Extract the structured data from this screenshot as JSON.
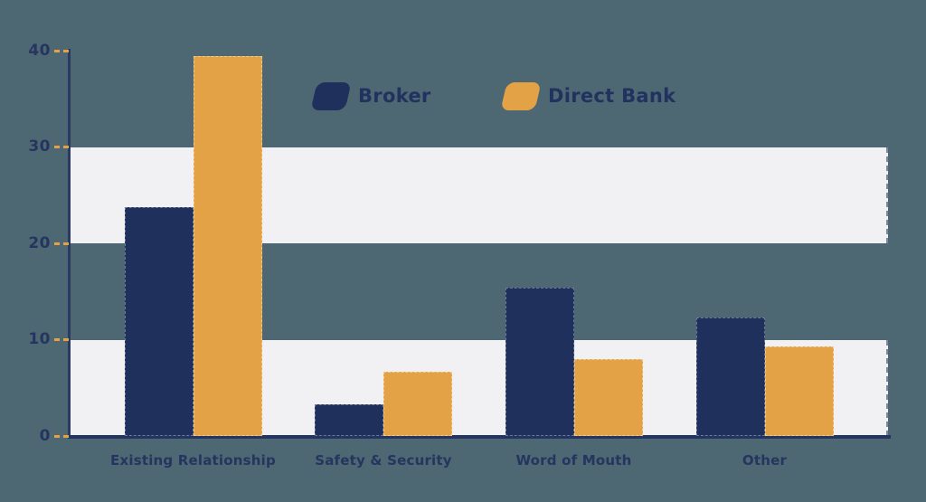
{
  "chart_data": {
    "type": "bar",
    "title": "",
    "categories": [
      "Existing Relationship",
      "Safety & Security",
      "Word of Mouth",
      "Other"
    ],
    "series": [
      {
        "name": "Broker",
        "color": "#20305c",
        "values": [
          23.8,
          3.3,
          15.4,
          12.3
        ]
      },
      {
        "name": "Direct Bank",
        "color": "#e2a245",
        "values": [
          39.4,
          6.7,
          8.0,
          9.3
        ]
      }
    ],
    "ylim": [
      0,
      40
    ],
    "yticks": [
      0,
      10,
      20,
      30,
      40
    ],
    "grid_bands": [
      {
        "from": 0,
        "to": 10
      },
      {
        "from": 20,
        "to": 30
      }
    ],
    "band_color": "#f1f1f3",
    "background_color": "#4d6872",
    "axis_color": "#2a3a63",
    "tick_color": "#e2a245",
    "text_color": "#26355f",
    "legend_position": "top-center",
    "grid": "band-style horizontal stripes, no vertical gridlines"
  }
}
